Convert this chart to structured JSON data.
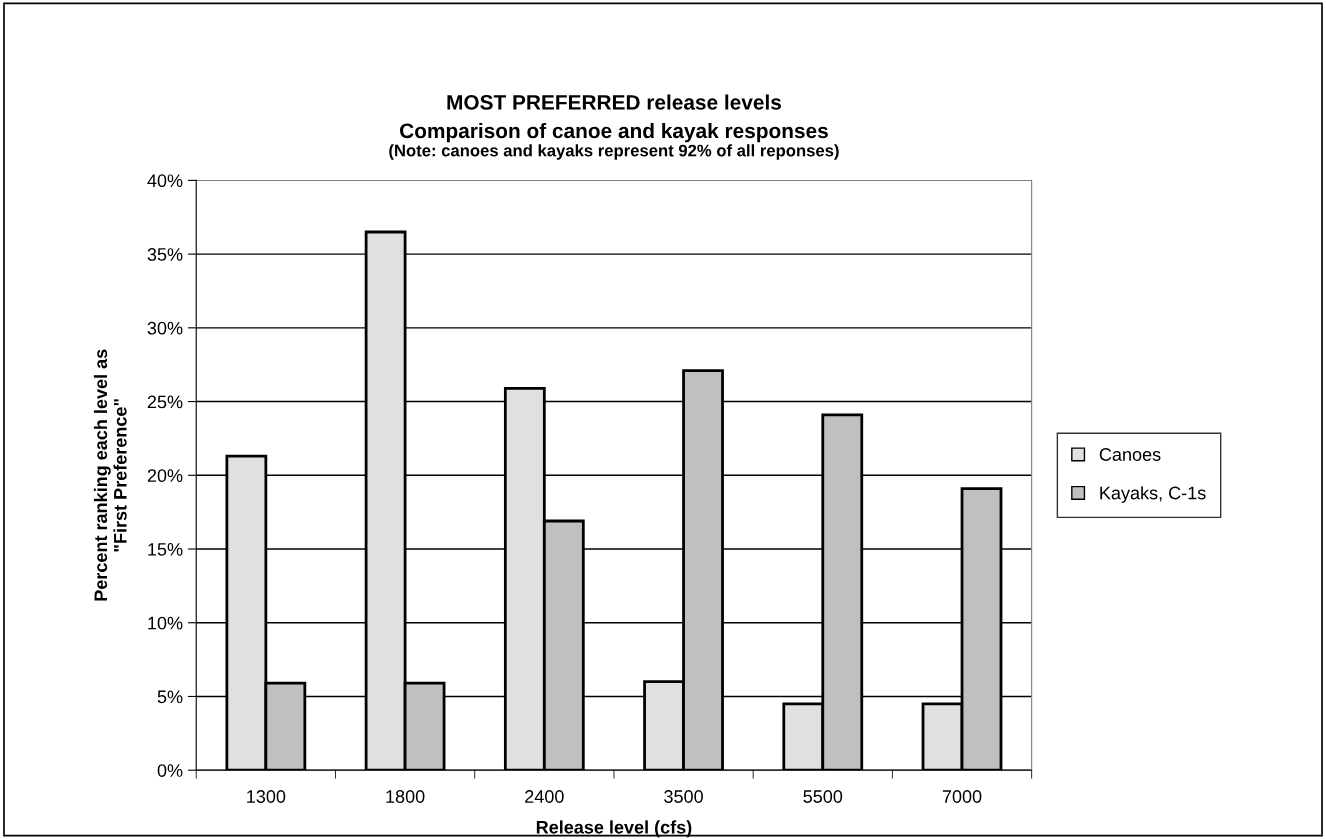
{
  "chart_data": {
    "type": "bar",
    "title": "MOST PREFERRED release levels\nComparison of canoe and kayak responses",
    "subtitle": "(Note: canoes and kayaks represent 92% of all reponses)",
    "xlabel": "Release level (cfs)",
    "ylabel": "Percent ranking each level as\n\"First Preference\"",
    "categories": [
      "1300",
      "1800",
      "2400",
      "3500",
      "5500",
      "7000"
    ],
    "series": [
      {
        "name": "Canoes",
        "color": "#e0e0e0",
        "values": [
          21.3,
          36.5,
          25.9,
          6.0,
          4.5,
          4.5
        ]
      },
      {
        "name": "Kayaks, C-1s",
        "color": "#c0c0c0",
        "values": [
          5.9,
          5.9,
          16.9,
          27.1,
          24.1,
          19.1
        ]
      }
    ],
    "ylim": [
      0,
      40
    ],
    "yticks": [
      {
        "value": 0,
        "label": "0%"
      },
      {
        "value": 5,
        "label": "5%"
      },
      {
        "value": 10,
        "label": "10%"
      },
      {
        "value": 15,
        "label": "15%"
      },
      {
        "value": 20,
        "label": "20%"
      },
      {
        "value": 25,
        "label": "25%"
      },
      {
        "value": 30,
        "label": "30%"
      },
      {
        "value": 35,
        "label": "35%"
      },
      {
        "value": 40,
        "label": "40%"
      }
    ],
    "grid": "y",
    "legend": "right"
  }
}
